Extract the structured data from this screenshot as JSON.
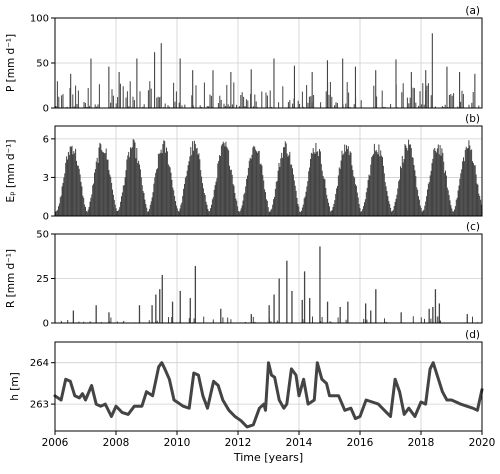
{
  "chart_data": [
    {
      "panel": "(a)",
      "type": "bar",
      "ylabel": "P [mm d⁻¹]",
      "ylim": [
        0,
        100
      ],
      "yticks": [
        0,
        50,
        100
      ],
      "grid": true,
      "series": [
        {
          "name": "",
          "color": "#444444",
          "x_range": [
            "2006-01-01",
            "2020-01-01"
          ],
          "peaks": [
            {
              "x": "2006-07-01",
              "y": 38
            },
            {
              "x": "2007-03-01",
              "y": 55
            },
            {
              "x": "2007-10-01",
              "y": 46
            },
            {
              "x": "2008-02-01",
              "y": 40
            },
            {
              "x": "2008-09-01",
              "y": 55
            },
            {
              "x": "2009-04-01",
              "y": 62
            },
            {
              "x": "2009-06-20",
              "y": 72
            },
            {
              "x": "2010-02-01",
              "y": 55
            },
            {
              "x": "2010-07-01",
              "y": 42
            },
            {
              "x": "2011-03-01",
              "y": 42
            },
            {
              "x": "2011-10-01",
              "y": 40
            },
            {
              "x": "2012-06-01",
              "y": 43
            },
            {
              "x": "2013-03-01",
              "y": 55
            },
            {
              "x": "2013-11-01",
              "y": 47
            },
            {
              "x": "2014-06-01",
              "y": 40
            },
            {
              "x": "2014-12-01",
              "y": 53
            },
            {
              "x": "2015-06-01",
              "y": 55
            },
            {
              "x": "2015-11-01",
              "y": 46
            },
            {
              "x": "2016-07-01",
              "y": 42
            },
            {
              "x": "2017-03-01",
              "y": 54
            },
            {
              "x": "2017-09-01",
              "y": 40
            },
            {
              "x": "2018-02-20",
              "y": 42
            },
            {
              "x": "2018-05-10",
              "y": 83
            },
            {
              "x": "2018-11-01",
              "y": 46
            },
            {
              "x": "2019-04-01",
              "y": 40
            },
            {
              "x": "2019-10-01",
              "y": 38
            }
          ],
          "typical_max": 30
        }
      ]
    },
    {
      "panel": "(b)",
      "type": "area",
      "ylabel": "Eₚ [mm d⁻¹]",
      "ylim": [
        0,
        7
      ],
      "yticks": [
        0,
        3,
        6
      ],
      "grid": true,
      "series": [
        {
          "name": "",
          "color": "#444444",
          "seasonal": true,
          "summer_peak": 6.0,
          "winter_min": 0.4,
          "peak_month": "July"
        }
      ]
    },
    {
      "panel": "(c)",
      "type": "bar",
      "ylabel": "R [mm d⁻¹]",
      "ylim": [
        0,
        50
      ],
      "yticks": [
        0,
        25,
        50
      ],
      "grid": true,
      "series": [
        {
          "name": "",
          "color": "#444444",
          "peaks": [
            {
              "x": "2006-08-01",
              "y": 7
            },
            {
              "x": "2007-05-01",
              "y": 10
            },
            {
              "x": "2007-10-01",
              "y": 6
            },
            {
              "x": "2008-10-01",
              "y": 10
            },
            {
              "x": "2009-03-01",
              "y": 10
            },
            {
              "x": "2009-04-15",
              "y": 16
            },
            {
              "x": "2009-06-01",
              "y": 19
            },
            {
              "x": "2009-07-01",
              "y": 27
            },
            {
              "x": "2009-11-01",
              "y": 12
            },
            {
              "x": "2010-02-01",
              "y": 18
            },
            {
              "x": "2010-06-01",
              "y": 14
            },
            {
              "x": "2010-08-01",
              "y": 32
            },
            {
              "x": "2011-06-01",
              "y": 8
            },
            {
              "x": "2012-06-01",
              "y": 5
            },
            {
              "x": "2013-01-01",
              "y": 10
            },
            {
              "x": "2013-03-01",
              "y": 16
            },
            {
              "x": "2013-05-01",
              "y": 25
            },
            {
              "x": "2013-08-01",
              "y": 35
            },
            {
              "x": "2013-10-01",
              "y": 18
            },
            {
              "x": "2014-02-01",
              "y": 13
            },
            {
              "x": "2014-03-01",
              "y": 29
            },
            {
              "x": "2014-05-01",
              "y": 14
            },
            {
              "x": "2014-09-01",
              "y": 43
            },
            {
              "x": "2014-12-01",
              "y": 12
            },
            {
              "x": "2015-05-01",
              "y": 9
            },
            {
              "x": "2015-08-01",
              "y": 12
            },
            {
              "x": "2016-03-01",
              "y": 11
            },
            {
              "x": "2016-05-01",
              "y": 7
            },
            {
              "x": "2016-07-01",
              "y": 19
            },
            {
              "x": "2017-05-01",
              "y": 6
            },
            {
              "x": "2018-04-01",
              "y": 8
            },
            {
              "x": "2018-05-15",
              "y": 9
            },
            {
              "x": "2018-06-15",
              "y": 19
            },
            {
              "x": "2018-08-01",
              "y": 11
            },
            {
              "x": "2019-07-01",
              "y": 5
            }
          ]
        }
      ]
    },
    {
      "panel": "(d)",
      "type": "line",
      "ylabel": "h [m]",
      "xlabel": "Time [years]",
      "ylim": [
        262.35,
        264.5
      ],
      "yticks": [
        263,
        264
      ],
      "xticks": [
        "2006",
        "2008",
        "2010",
        "2012",
        "2014",
        "2016",
        "2018",
        "2020"
      ],
      "xlim": [
        2006,
        2020
      ],
      "grid": true,
      "series": [
        {
          "name": "",
          "color": "#444444",
          "x": [
            2006.0,
            2006.2,
            2006.35,
            2006.5,
            2006.65,
            2006.8,
            2006.9,
            2007.0,
            2007.2,
            2007.35,
            2007.5,
            2007.65,
            2007.85,
            2008.0,
            2008.2,
            2008.4,
            2008.6,
            2008.85,
            2009.0,
            2009.2,
            2009.4,
            2009.5,
            2009.6,
            2009.75,
            2009.9,
            2010.0,
            2010.2,
            2010.4,
            2010.55,
            2010.7,
            2010.85,
            2011.0,
            2011.2,
            2011.35,
            2011.5,
            2011.7,
            2011.9,
            2012.1,
            2012.3,
            2012.5,
            2012.7,
            2012.85,
            2012.9,
            2013.0,
            2013.1,
            2013.2,
            2013.35,
            2013.5,
            2013.6,
            2013.75,
            2013.9,
            2014.0,
            2014.15,
            2014.3,
            2014.5,
            2014.6,
            2014.75,
            2014.9,
            2015.0,
            2015.15,
            2015.3,
            2015.5,
            2015.7,
            2015.85,
            2016.0,
            2016.2,
            2016.4,
            2016.6,
            2016.8,
            2017.0,
            2017.15,
            2017.3,
            2017.45,
            2017.6,
            2017.8,
            2018.0,
            2018.15,
            2018.3,
            2018.4,
            2018.55,
            2018.7,
            2018.85,
            2019.0,
            2019.15,
            2019.3,
            2019.5,
            2019.7,
            2019.85,
            2020.0
          ],
          "y": [
            263.2,
            263.1,
            263.6,
            263.55,
            263.2,
            263.15,
            263.25,
            263.1,
            263.45,
            263.0,
            262.95,
            263.0,
            262.7,
            262.95,
            262.8,
            262.75,
            262.95,
            262.95,
            263.3,
            263.2,
            263.9,
            264.0,
            263.85,
            263.6,
            263.1,
            263.05,
            262.95,
            262.9,
            263.75,
            263.7,
            263.2,
            262.9,
            263.55,
            263.45,
            263.1,
            262.85,
            262.7,
            262.6,
            262.45,
            262.5,
            262.9,
            263.0,
            262.85,
            264.0,
            263.7,
            263.65,
            263.1,
            262.9,
            263.0,
            263.85,
            263.7,
            263.2,
            263.6,
            263.0,
            263.1,
            264.0,
            263.6,
            263.5,
            263.2,
            263.2,
            263.2,
            262.85,
            262.9,
            262.65,
            262.7,
            263.1,
            263.05,
            263.0,
            262.85,
            262.7,
            263.6,
            263.3,
            262.75,
            262.9,
            262.7,
            263.05,
            263.0,
            263.85,
            264.0,
            263.65,
            263.3,
            263.1,
            263.1,
            263.05,
            263.0,
            262.95,
            262.9,
            262.85,
            263.35
          ]
        }
      ]
    }
  ]
}
